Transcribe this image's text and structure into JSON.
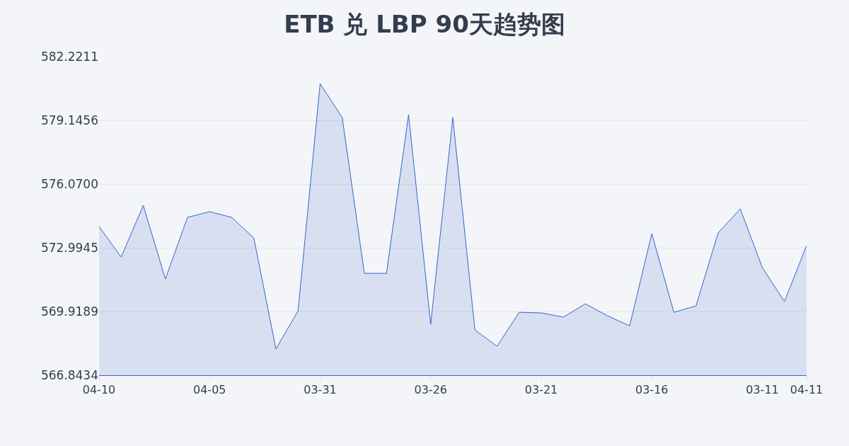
{
  "chart_data": {
    "type": "area",
    "title": "ETB 兑 LBP 90天趋势图",
    "categories": [
      "04-10",
      null,
      null,
      null,
      null,
      "04-05",
      null,
      null,
      null,
      null,
      "03-31",
      null,
      null,
      null,
      null,
      "03-26",
      null,
      null,
      null,
      null,
      "03-21",
      null,
      null,
      null,
      null,
      "03-16",
      null,
      null,
      null,
      null,
      "03-11",
      null,
      "04-11"
    ],
    "series": [
      {
        "color": "#3366cc",
        "values": [
          574.02,
          572.55,
          575.04,
          571.49,
          574.46,
          574.74,
          574.46,
          573.47,
          568.11,
          569.95,
          580.92,
          579.28,
          571.76,
          571.76,
          579.42,
          569.3,
          579.28,
          569.03,
          568.24,
          569.88,
          569.85,
          569.65,
          570.29,
          569.71,
          569.23,
          573.68,
          569.88,
          570.19,
          573.71,
          574.87,
          572.04,
          570.4,
          573.1
        ]
      }
    ],
    "ylim": [
      566.8434,
      582.2211
    ],
    "yticks": [
      566.8434,
      569.9189,
      572.9945,
      {
        "value": 576.07,
        "label": "576.0700"
      },
      579.1456,
      582.2211
    ],
    "grid": "y",
    "marker": "none",
    "line_style": "solid"
  }
}
